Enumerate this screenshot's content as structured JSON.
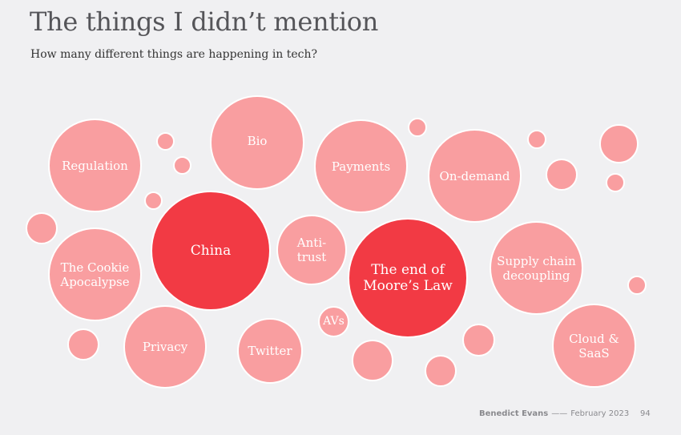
{
  "slide": {
    "title": "The things I didn’t mention",
    "subtitle": "How many different things are happening in tech?"
  },
  "bubbles": {
    "regulation": "Regulation",
    "bio": "Bio",
    "payments": "Payments",
    "on_demand": "On-demand",
    "china": "China",
    "antitrust": "Anti-\ntrust",
    "moores_law": "The end of\nMoore’s Law",
    "supply_chain": "Supply chain\ndecoupling",
    "cookie": "The Cookie\nApocalypse",
    "privacy": "Privacy",
    "twitter": "Twitter",
    "avs": "AVs",
    "cloud": "Cloud &\nSaaS"
  },
  "colors": {
    "pink": "#f99ea0",
    "red": "#f23a44",
    "background": "#f0f0f2"
  },
  "footer": {
    "author": "Benedict Evans",
    "separator": "——",
    "date": "February 2023",
    "page": "94"
  }
}
